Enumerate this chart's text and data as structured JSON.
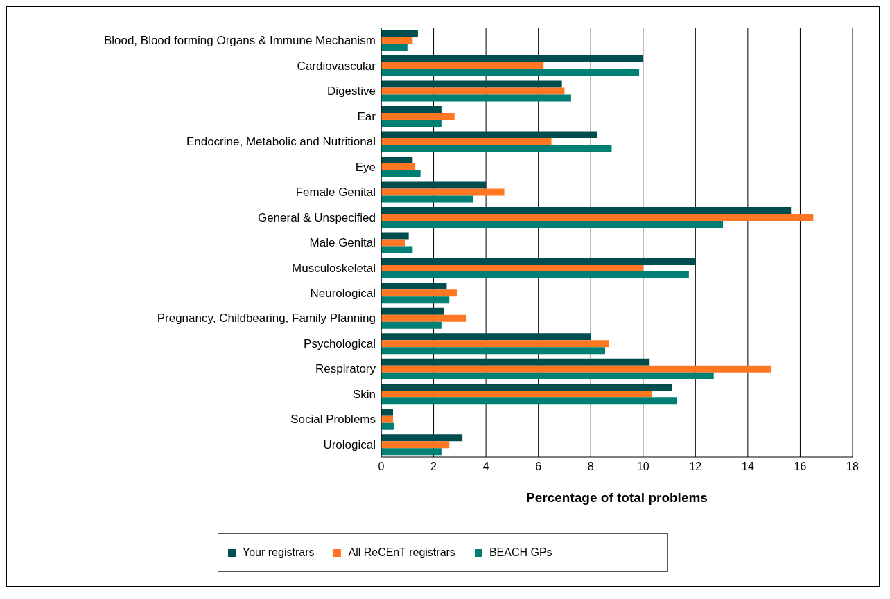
{
  "chart_data": {
    "type": "bar",
    "orientation": "horizontal",
    "xlabel": "Percentage of total problems",
    "categories": [
      "Blood, Blood forming Organs & Immune Mechanism",
      "Cardiovascular",
      "Digestive",
      "Ear",
      "Endocrine, Metabolic and Nutritional",
      "Eye",
      "Female Genital",
      "General & Unspecified",
      "Male Genital",
      "Musculoskeletal",
      "Neurological",
      "Pregnancy, Childbearing, Family Planning",
      "Psychological",
      "Respiratory",
      "Skin",
      "Social Problems",
      "Urological"
    ],
    "series": [
      {
        "name": "Your registrars",
        "color": "#004d4d",
        "values": [
          1.4,
          10.0,
          6.9,
          2.3,
          8.25,
          1.2,
          4.0,
          15.65,
          1.05,
          12.0,
          2.5,
          2.4,
          8.0,
          10.25,
          11.1,
          0.45,
          3.1
        ]
      },
      {
        "name": "All ReCEnT registrars",
        "color": "#ff7722",
        "values": [
          1.2,
          6.2,
          7.0,
          2.8,
          6.5,
          1.3,
          4.7,
          16.5,
          0.9,
          10.0,
          2.9,
          3.25,
          8.7,
          14.9,
          10.35,
          0.45,
          2.6
        ]
      },
      {
        "name": "BEACH GPs",
        "color": "#008075",
        "values": [
          1.0,
          9.85,
          7.25,
          2.3,
          8.8,
          1.5,
          3.5,
          13.05,
          1.2,
          11.75,
          2.6,
          2.3,
          8.55,
          12.7,
          11.3,
          0.5,
          2.3
        ]
      }
    ],
    "xlim": [
      0,
      18
    ],
    "xticks": [
      0,
      2,
      4,
      6,
      8,
      10,
      12,
      14,
      16,
      18
    ],
    "grid": "x",
    "legend": "bottom"
  }
}
